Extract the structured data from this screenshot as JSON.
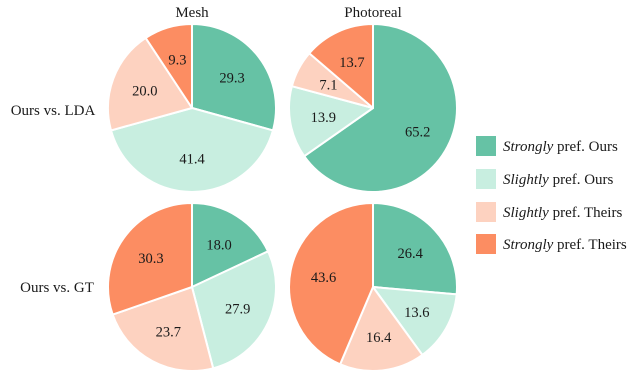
{
  "chart_data": {
    "type": "pie",
    "column_titles": [
      "Mesh",
      "Photoreal"
    ],
    "row_labels": [
      "Ours vs. LDA",
      "Ours vs. GT"
    ],
    "categories": [
      {
        "emph": "Strongly",
        "rest": " pref. Ours"
      },
      {
        "emph": "Slightly",
        "rest": " pref. Ours"
      },
      {
        "emph": "Slightly",
        "rest": " pref. Theirs"
      },
      {
        "emph": "Strongly",
        "rest": " pref. Theirs"
      }
    ],
    "colors": [
      "#66c2a5",
      "#c8eee0",
      "#fdd2c0",
      "#fc8d62"
    ],
    "legend_position": "right",
    "pies": [
      {
        "row": 0,
        "col": 0,
        "values": [
          29.3,
          41.4,
          20.0,
          9.3
        ],
        "labels": [
          "29.3",
          "41.4",
          "20.0",
          "9.3"
        ]
      },
      {
        "row": 0,
        "col": 1,
        "values": [
          65.2,
          13.9,
          7.1,
          13.7
        ],
        "labels": [
          "65.2",
          "13.9",
          "7.1",
          "13.7"
        ]
      },
      {
        "row": 1,
        "col": 0,
        "values": [
          18.0,
          27.9,
          23.7,
          30.3
        ],
        "labels": [
          "18.0",
          "27.9",
          "23.7",
          "30.3"
        ]
      },
      {
        "row": 1,
        "col": 1,
        "values": [
          26.4,
          13.6,
          16.4,
          43.6
        ],
        "labels": [
          "26.4",
          "13.6",
          "16.4",
          "43.6"
        ]
      }
    ]
  }
}
